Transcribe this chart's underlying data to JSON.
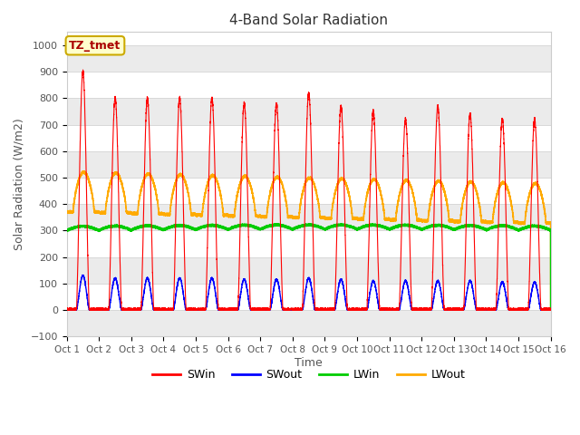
{
  "title": "4-Band Solar Radiation",
  "xlabel": "Time",
  "ylabel": "Solar Radiation (W/m2)",
  "ylim": [
    -100,
    1050
  ],
  "xlim": [
    0,
    15
  ],
  "fig_bg": "#ffffff",
  "plot_bg": "#ffffff",
  "grid_color": "#d8d8d8",
  "label_box_text": "TZ_tmet",
  "label_box_bg": "#ffffcc",
  "label_box_edge": "#ccaa00",
  "colors": {
    "SWin": "#ff0000",
    "SWout": "#0000ff",
    "LWin": "#00cc00",
    "LWout": "#ffaa00"
  },
  "n_days": 15,
  "tick_labels": [
    "Oct 1",
    "Oct 2",
    "Oct 3",
    "Oct 4",
    "Oct 5",
    "Oct 6",
    "Oct 7",
    "Oct 8",
    "Oct 9",
    "Oct 10",
    "Oct 11",
    "Oct 12",
    "Oct 13",
    "Oct 14",
    "Oct 15",
    "Oct 16"
  ],
  "SWin_peaks": [
    900,
    800,
    800,
    800,
    800,
    780,
    780,
    820,
    770,
    750,
    720,
    770,
    740,
    720,
    720
  ],
  "SWout_peaks": [
    130,
    120,
    120,
    120,
    120,
    115,
    115,
    120,
    115,
    110,
    110,
    110,
    110,
    105,
    105
  ],
  "yticks": [
    -100,
    0,
    100,
    200,
    300,
    400,
    500,
    600,
    700,
    800,
    900,
    1000
  ]
}
